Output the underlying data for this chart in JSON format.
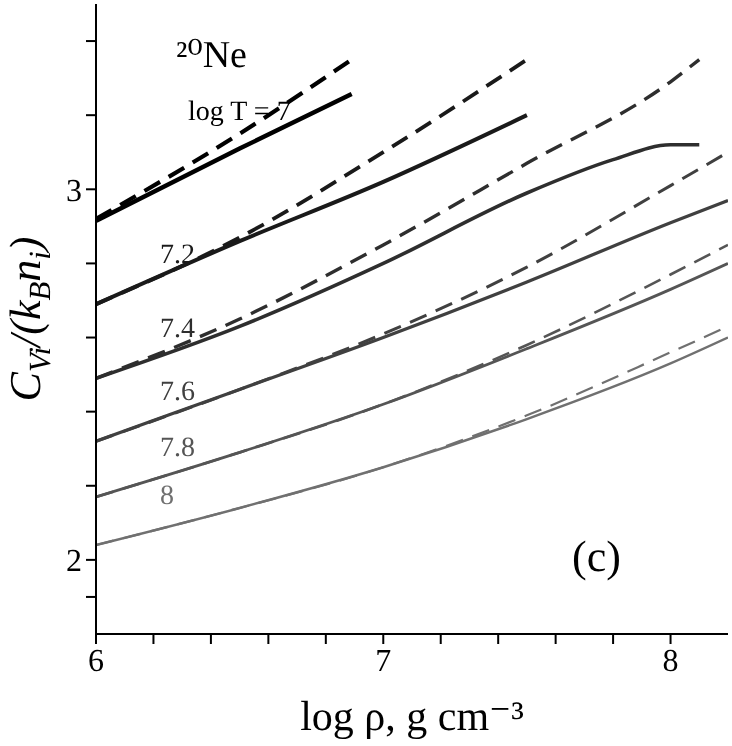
{
  "chart_data": {
    "type": "line",
    "xlabel": "log ρ, g cm⁻³",
    "ylabel": "C$_{Vi}$/(k$_{B}$n$_{i}$)",
    "annotations": [
      "²⁰Ne",
      "(c)"
    ],
    "xlim": [
      6,
      8.2
    ],
    "ylim": [
      1.8,
      3.5
    ],
    "xticks": [
      6,
      {
        "value": 6.2,
        "label": null
      },
      {
        "value": 6.4,
        "label": null
      },
      {
        "value": 6.6,
        "label": null
      },
      {
        "value": 6.8,
        "label": null
      },
      7,
      {
        "value": 7.2,
        "label": null
      },
      {
        "value": 7.4,
        "label": null
      },
      {
        "value": 7.6,
        "label": null
      },
      {
        "value": 7.8,
        "label": null
      },
      8
    ],
    "yticks": [
      {
        "value": 1.9,
        "label": null
      },
      2,
      {
        "value": 2.2,
        "label": null
      },
      {
        "value": 2.4,
        "label": null
      },
      {
        "value": 2.6,
        "label": null
      },
      {
        "value": 2.8,
        "label": null
      },
      3,
      {
        "value": 3.2,
        "label": null
      },
      {
        "value": 3.4,
        "label": null
      }
    ],
    "grid": false,
    "legend": false,
    "marker": "none",
    "series": [
      {
        "name": "log T = 7",
        "color": "#000000",
        "line_style": "solid",
        "x": [
          6,
          6.5,
          6.89
        ],
        "values": [
          2.915,
          3.11,
          3.257
        ]
      },
      {
        "color": "#000000",
        "line_style": "dashed",
        "x": [
          6,
          6.5,
          6.89
        ],
        "values": [
          2.92,
          3.15,
          3.35
        ]
      },
      {
        "name": "7.2",
        "color": "#1a1a1a",
        "line_style": "solid",
        "x": [
          6,
          6.5,
          7,
          7.5
        ],
        "values": [
          2.69,
          2.86,
          3.02,
          3.2
        ]
      },
      {
        "color": "#1a1a1a",
        "line_style": "dashed",
        "x": [
          6,
          6.5,
          7,
          7.5
        ],
        "values": [
          2.69,
          2.87,
          3.1,
          3.35
        ]
      },
      {
        "name": "7.4",
        "color": "#2e2e2e",
        "line_style": "solid",
        "x": [
          6,
          6.5,
          7,
          7.5,
          7.8,
          8,
          8.1
        ],
        "values": [
          2.49,
          2.63,
          2.8,
          2.99,
          3.08,
          3.12,
          3.12
        ]
      },
      {
        "color": "#2e2e2e",
        "line_style": "dashed",
        "x": [
          6,
          6.5,
          7,
          7.5,
          8,
          8.1
        ],
        "values": [
          2.49,
          2.65,
          2.85,
          3.07,
          3.29,
          3.35
        ]
      },
      {
        "name": "7.6",
        "color": "#404040",
        "line_style": "solid",
        "x": [
          6,
          6.5,
          7,
          7.5,
          8,
          8.2
        ],
        "values": [
          2.32,
          2.46,
          2.6,
          2.75,
          2.91,
          2.97
        ]
      },
      {
        "color": "#404040",
        "line_style": "dashed",
        "x": [
          6,
          6.5,
          7,
          7.5,
          8,
          8.2
        ],
        "values": [
          2.32,
          2.46,
          2.61,
          2.79,
          3.01,
          3.1
        ]
      },
      {
        "name": "7.8",
        "color": "#555555",
        "line_style": "solid",
        "x": [
          6,
          6.5,
          7,
          7.5,
          8,
          8.2
        ],
        "values": [
          2.17,
          2.29,
          2.42,
          2.57,
          2.73,
          2.8
        ]
      },
      {
        "color": "#555555",
        "line_style": "dashed",
        "x": [
          6,
          6.5,
          7,
          7.5,
          8,
          8.2
        ],
        "values": [
          2.17,
          2.29,
          2.42,
          2.58,
          2.77,
          2.85
        ]
      },
      {
        "name": "8",
        "color": "#707070",
        "line_style": "solid",
        "x": [
          6,
          6.5,
          7,
          7.5,
          8,
          8.2
        ],
        "values": [
          2.04,
          2.14,
          2.25,
          2.38,
          2.53,
          2.6
        ]
      },
      {
        "color": "#707070",
        "line_style": "dashed",
        "x": [
          6,
          6.5,
          7,
          7.5,
          8,
          8.2
        ],
        "values": [
          2.04,
          2.14,
          2.25,
          2.39,
          2.56,
          2.63
        ]
      }
    ]
  }
}
